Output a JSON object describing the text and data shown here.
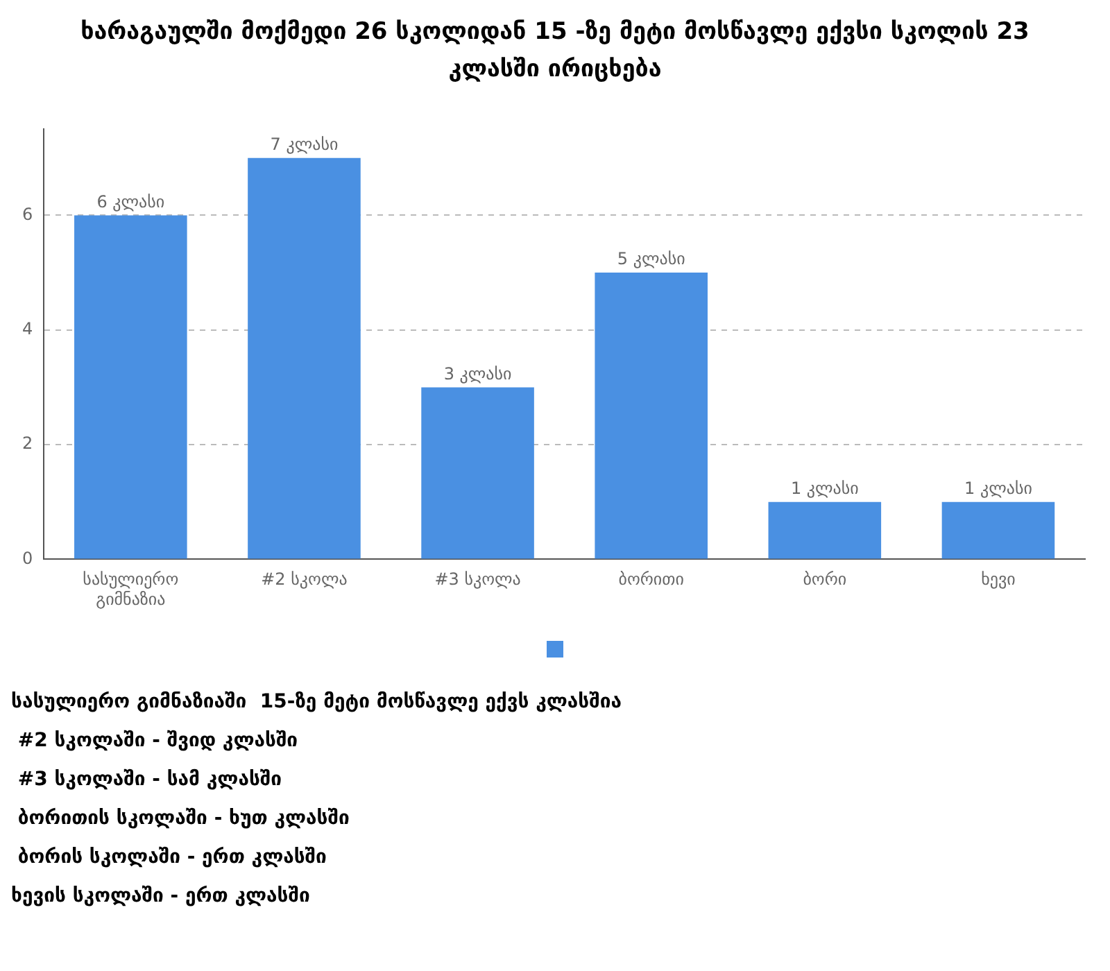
{
  "chart_data": {
    "type": "bar",
    "title": "ხარაგაულში მოქმედი 26 სკოლიდან 15 -ზე მეტი მოსწავლე ექვსი სკოლის 23 კლასში ირიცხება",
    "categories": [
      "სასულიერო გიმნაზია",
      "#2 სკოლა",
      "#3 სკოლა",
      "ბორითი",
      "ბორი",
      "ხევი"
    ],
    "values": [
      6,
      7,
      3,
      5,
      1,
      1
    ],
    "color": "#4a90e2",
    "value_labels": [
      "6 კლასი",
      "7 კლასი",
      "3 კლასი",
      "5 კლასი",
      "1 კლასი",
      "1 კლასი"
    ],
    "ylim": [
      0,
      7.5
    ],
    "yticks": [
      0,
      2,
      4,
      6
    ],
    "grid": "y",
    "annotations": [
      "სასულიერო გიმნაზიაში  15-ზე მეტი მოსწავლე ექვს კლასშია",
      " #2 სკოლაში - შვიდ კლასში",
      " #3 სკოლაში - სამ კლასში",
      " ბორითის სკოლაში - ხუთ კლასში",
      " ბორის სკოლაში - ერთ კლასში",
      "ხევის სკოლაში - ერთ კლასში"
    ]
  }
}
